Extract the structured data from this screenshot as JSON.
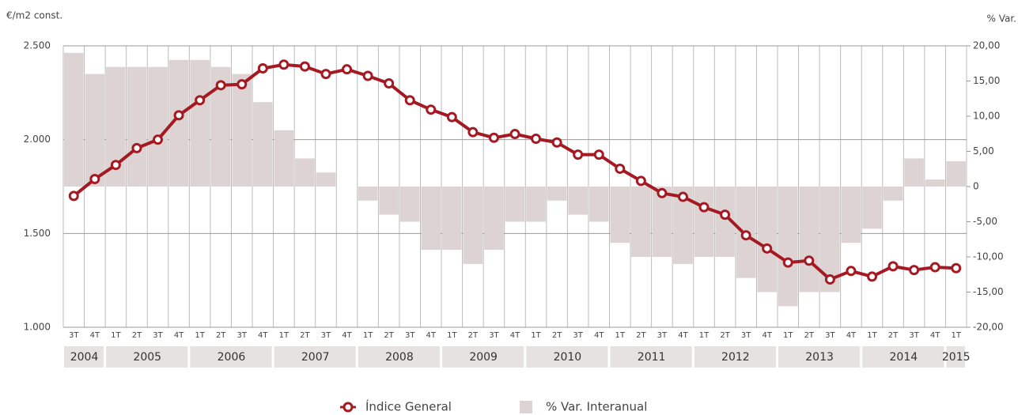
{
  "chart_data": {
    "type": "combo",
    "y_label": "€/m2 const.",
    "y2_label": "% Var.",
    "categories": [
      "3T",
      "4T",
      "1T",
      "2T",
      "3T",
      "4T",
      "1T",
      "2T",
      "3T",
      "4T",
      "1T",
      "2T",
      "3T",
      "4T",
      "1T",
      "2T",
      "3T",
      "4T",
      "1T",
      "2T",
      "3T",
      "4T",
      "1T",
      "2T",
      "3T",
      "4T",
      "1T",
      "2T",
      "3T",
      "4T",
      "1T",
      "2T",
      "3T",
      "4T",
      "1T",
      "2T",
      "3T",
      "4T",
      "1T",
      "2T",
      "3T",
      "4T",
      "1T"
    ],
    "years": [
      "2004",
      "2005",
      "2006",
      "2007",
      "2008",
      "2009",
      "2010",
      "2011",
      "2012",
      "2013",
      "2014",
      "2015"
    ],
    "series": [
      {
        "name": "% Var. Interanual",
        "color": "#ddd3d3",
        "axis": "y2",
        "kind": "bar",
        "values": [
          19,
          16,
          17,
          17,
          17,
          18,
          18,
          17,
          16,
          12,
          8,
          4,
          2,
          0,
          -2,
          -4,
          -5,
          -9,
          -9,
          -11,
          -9,
          -5,
          -5,
          -2,
          -4,
          -5,
          -8,
          -10,
          -10,
          -11,
          -10,
          -10,
          -13,
          -15,
          -17,
          -15,
          -15,
          -8,
          -6,
          -2,
          4,
          1,
          3.6
        ]
      },
      {
        "name": "Índice General",
        "color": "#a51a22",
        "kind": "line",
        "values": [
          1700,
          1790,
          1865,
          1955,
          2000,
          2130,
          2210,
          2290,
          2295,
          2380,
          2400,
          2390,
          2350,
          2375,
          2340,
          2300,
          2210,
          2160,
          2120,
          2040,
          2010,
          2030,
          2005,
          1985,
          1920,
          1920,
          1845,
          1780,
          1715,
          1695,
          1640,
          1600,
          1490,
          1420,
          1345,
          1355,
          1255,
          1300,
          1270,
          1325,
          1305,
          1320,
          1315
        ]
      }
    ],
    "ylim": [
      1000,
      2500
    ],
    "yticks": [
      {
        "value": 1000,
        "label": "1.000"
      },
      {
        "value": 1500,
        "label": "1.500"
      },
      {
        "value": 2000,
        "label": "2.000"
      },
      {
        "value": 2500,
        "label": "2.500"
      }
    ],
    "y2lim": [
      -20,
      20
    ],
    "y2ticks": [
      {
        "value": -20,
        "label": "-20,00"
      },
      {
        "value": -15,
        "label": "-15,00"
      },
      {
        "value": -10,
        "label": "-10,00"
      },
      {
        "value": -5,
        "label": "-5,00"
      },
      0,
      {
        "value": 5,
        "label": "5,00"
      },
      {
        "value": 10,
        "label": "10,00"
      },
      {
        "value": 15,
        "label": "15,00"
      },
      {
        "value": 20,
        "label": "20,00"
      }
    ],
    "grid": true
  }
}
